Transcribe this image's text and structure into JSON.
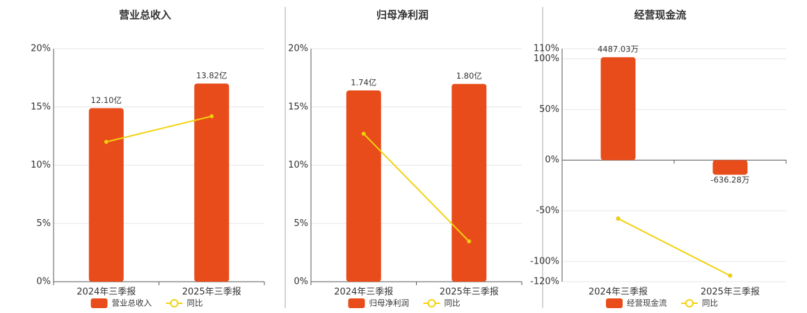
{
  "chart_data": [
    {
      "type": "bar",
      "title": "营业总收入",
      "categories": [
        "2024年三季报",
        "2025年三季报"
      ],
      "series": [
        {
          "name": "营业总收入",
          "color": "#e84c1a",
          "axis": "y2",
          "values": [
            12.1,
            13.82
          ],
          "value_labels": [
            "12.10亿",
            "13.82亿"
          ]
        },
        {
          "name": "同比",
          "color": "#f2d20f",
          "type": "line",
          "values": [
            12.0,
            14.2
          ]
        }
      ],
      "ylim": [
        0,
        20
      ],
      "yticks": [
        {
          "value": 0,
          "label": "0%"
        },
        {
          "value": 5,
          "label": "5%"
        },
        {
          "value": 10,
          "label": "10%"
        },
        {
          "value": 15,
          "label": "15%"
        },
        {
          "value": 20,
          "label": "20%"
        }
      ],
      "y2lim": [
        0,
        16.25
      ],
      "grid": true,
      "legend": "bottom"
    },
    {
      "type": "bar",
      "title": "归母净利润",
      "categories": [
        "2024年三季报",
        "2025年三季报"
      ],
      "series": [
        {
          "name": "归母净利润",
          "color": "#e84c1a",
          "axis": "y2",
          "values": [
            1.74,
            1.8
          ],
          "value_labels": [
            "1.74亿",
            "1.80亿"
          ]
        },
        {
          "name": "同比",
          "color": "#f2d20f",
          "type": "line",
          "values": [
            12.7,
            3.46
          ]
        }
      ],
      "ylim": [
        0,
        20
      ],
      "yticks": [
        {
          "value": 0,
          "label": "0%"
        },
        {
          "value": 5,
          "label": "5%"
        },
        {
          "value": 10,
          "label": "10%"
        },
        {
          "value": 15,
          "label": "15%"
        },
        {
          "value": 20,
          "label": "20%"
        }
      ],
      "y2lim": [
        0,
        2.12
      ],
      "grid": true,
      "legend": "bottom"
    },
    {
      "type": "bar",
      "title": "经营现金流",
      "categories": [
        "2024年三季报",
        "2025年三季报"
      ],
      "series": [
        {
          "name": "经营现金流",
          "color": "#e84c1a",
          "axis": "y2",
          "values": [
            4487.03,
            -636.28
          ],
          "value_labels": [
            "4487.03万",
            "-636.28万"
          ]
        },
        {
          "name": "同比",
          "color": "#f2d20f",
          "type": "line",
          "values": [
            -57.7,
            -114
          ]
        }
      ],
      "ylim": [
        -120,
        110
      ],
      "yticks": [
        {
          "value": -120,
          "label": "-120%"
        },
        {
          "value": -100,
          "label": "-100%"
        },
        {
          "value": -50,
          "label": "-50%"
        },
        {
          "value": 0,
          "label": "0%"
        },
        {
          "value": 50,
          "label": "50%"
        },
        {
          "value": 100,
          "label": "100%"
        },
        {
          "value": 110,
          "label": "110%"
        }
      ],
      "y2lim": [
        -5306,
        4852
      ],
      "grid": true,
      "legend": "bottom"
    }
  ]
}
